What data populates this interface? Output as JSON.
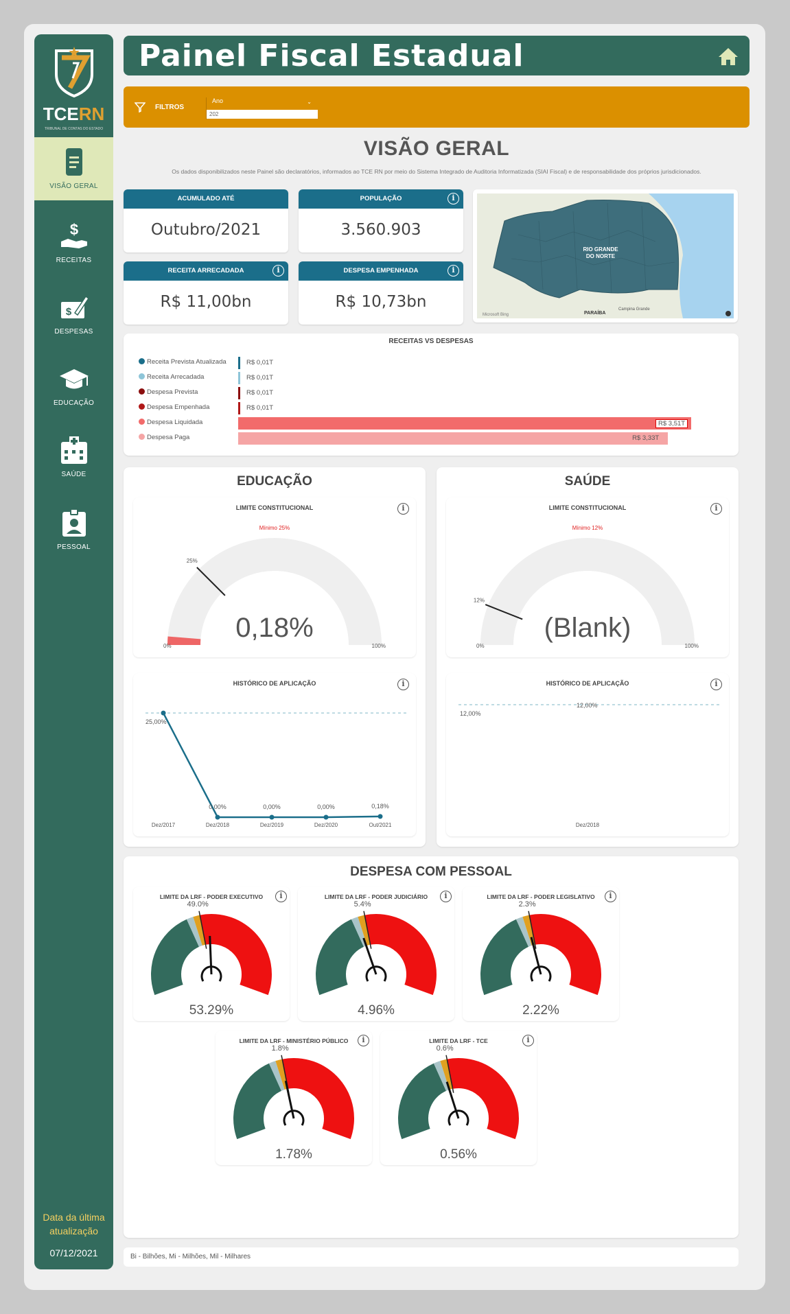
{
  "header": {
    "title": "Painel Fiscal Estadual"
  },
  "logo": {
    "tce": "TCE",
    "rn": "RN",
    "subtitle": "TRIBUNAL DE CONTAS DO ESTADO"
  },
  "sidebar": {
    "items": [
      {
        "label": "VISÃO GERAL",
        "icon": "document-icon",
        "active": true
      },
      {
        "label": "RECEITAS",
        "icon": "hand-dollar-icon"
      },
      {
        "label": "DESPESAS",
        "icon": "money-pen-icon"
      },
      {
        "label": "EDUCAÇÃO",
        "icon": "graduation-cap-icon"
      },
      {
        "label": "SAÚDE",
        "icon": "hospital-icon"
      },
      {
        "label": "PESSOAL",
        "icon": "id-badge-icon"
      }
    ],
    "update_label_1": "Data da última",
    "update_label_2": "atualização",
    "update_date": "07/12/2021"
  },
  "filters": {
    "label": "FILTROS",
    "year_label": "Ano",
    "year_value": "202"
  },
  "overview": {
    "title": "VISÃO GERAL",
    "description": "Os dados disponibilizados neste Painel são declaratórios, informados ao TCE RN por meio do Sistema Integrado de Auditoria Informatizada (SIAI Fiscal) e de responsabilidade dos próprios jurisdicionados."
  },
  "kpis": {
    "accumulated": {
      "label": "ACUMULADO ATÉ",
      "value": "Outubro/2021"
    },
    "population": {
      "label": "POPULAÇÃO",
      "value": "3.560.903"
    },
    "revenue": {
      "label": "RECEITA ARRECADADA",
      "value": "R$ 11,00bn"
    },
    "expense": {
      "label": "DESPESA EMPENHADA",
      "value": "R$ 10,73bn"
    }
  },
  "map": {
    "state_label_1": "RIO GRANDE",
    "state_label_2": "DO NORTE",
    "neighbor": "PARAÍBA",
    "city": "Campina Grande",
    "brand": "Microsoft Bing",
    "land_color": "#3e6e7c",
    "sea_color": "#a7d3ef"
  },
  "revenue_vs_expense": {
    "title": "RECEITAS VS DESPESAS",
    "series": [
      {
        "name": "Receita Prevista Atualizada",
        "label": "R$ 0,01T",
        "value": 0.01,
        "color": "#1b6e8a"
      },
      {
        "name": "Receita Arrecadada",
        "label": "R$ 0,01T",
        "value": 0.01,
        "color": "#8ec5d8"
      },
      {
        "name": "Despesa Prevista",
        "label": "R$ 0,01T",
        "value": 0.01,
        "color": "#8b0f0f"
      },
      {
        "name": "Despesa Empenhada",
        "label": "R$ 0,01T",
        "value": 0.01,
        "color": "#b01818"
      },
      {
        "name": "Despesa Liquidada",
        "label": "R$ 3,51T",
        "value": 3.51,
        "color": "#f26b6b"
      },
      {
        "name": "Despesa Paga",
        "label": "R$ 3,33T",
        "value": 3.33,
        "color": "#f5a5a5"
      }
    ],
    "max": 3.51
  },
  "education": {
    "title": "EDUCAÇÃO",
    "gauge": {
      "title": "LIMITE CONSTITUCIONAL",
      "min_label": "Mínimo 25%",
      "value_label": "0,18%",
      "value": 0.18,
      "target": 25,
      "target_label": "25%",
      "axis_min": "0%",
      "axis_max": "100%"
    },
    "history": {
      "title": "HISTÓRICO DE APLICAÇÃO",
      "ref_label": "25,00%",
      "ref": 25,
      "chart_data": {
        "type": "line",
        "x": [
          "Dez/2017",
          "Dez/2018",
          "Dez/2019",
          "Dez/2020",
          "Out/2021"
        ],
        "values": [
          25.0,
          0.0,
          0.0,
          0.0,
          0.18
        ],
        "value_labels": [
          "",
          "0,00%",
          "0,00%",
          "0,00%",
          "0,18%"
        ],
        "ylim": [
          0,
          27
        ]
      }
    }
  },
  "health": {
    "title": "SAÚDE",
    "gauge": {
      "title": "LIMITE CONSTITUCIONAL",
      "min_label": "Mínimo 12%",
      "value_label": "(Blank)",
      "target": 12,
      "target_label": "12%",
      "axis_min": "0%",
      "axis_max": "100%"
    },
    "history": {
      "title": "HISTÓRICO DE APLICAÇÃO",
      "ref_label": "12,00%",
      "ref_label_2": "12,00%",
      "x_label": "Dez/2018"
    }
  },
  "personnel": {
    "title": "DESPESA COM PESSOAL",
    "gauges": [
      {
        "title": "LIMITE DA LRF - PODER EXECUTIVO",
        "limit_label": "49.0%",
        "limit": 49.0,
        "value_label": "53.29%",
        "value": 53.29
      },
      {
        "title": "LIMITE DA LRF - PODER JUDICIÁRIO",
        "limit_label": "5.4%",
        "limit": 5.4,
        "value_label": "4.96%",
        "value": 4.96
      },
      {
        "title": "LIMITE DA LRF - PODER LEGISLATIVO",
        "limit_label": "2.3%",
        "limit": 2.3,
        "value_label": "2.22%",
        "value": 2.22
      },
      {
        "title": "LIMITE DA LRF - MINISTÉRIO PÚBLICO",
        "limit_label": "1.8%",
        "limit": 1.8,
        "value_label": "1.78%",
        "value": 1.78
      },
      {
        "title": "LIMITE DA LRF - TCE",
        "limit_label": "0.6%",
        "limit": 0.6,
        "value_label": "0.56%",
        "value": 0.56
      }
    ],
    "colors": {
      "ok": "#336b5d",
      "alert": "#a9c4c8",
      "prudential": "#e0a020",
      "over": "#ee1111"
    }
  },
  "footer": {
    "legend": "Bi - Bilhões, Mi - Milhões, Mil - Milhares"
  }
}
